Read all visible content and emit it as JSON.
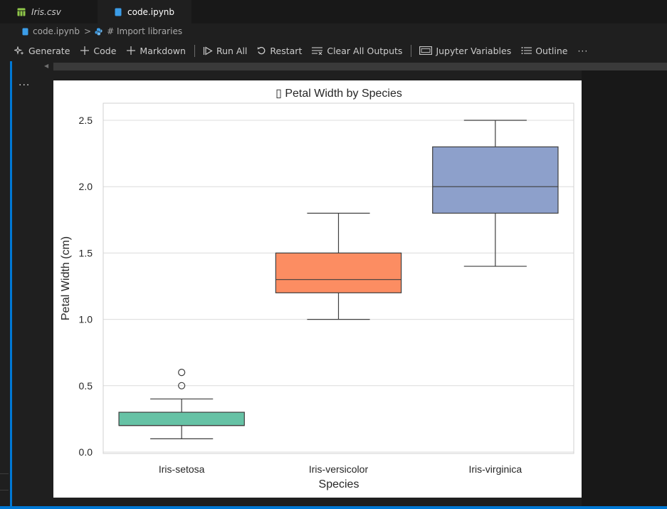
{
  "tabs": [
    {
      "label": "Iris.csv",
      "icon": "table-icon",
      "color": "#8fc74a"
    },
    {
      "label": "code.ipynb",
      "icon": "notebook-icon",
      "color": "#3b9de8"
    }
  ],
  "breadcrumb": {
    "file": "code.ipynb",
    "separator": ">",
    "cell": "# Import libraries"
  },
  "toolbar": {
    "generate": "Generate",
    "code": "Code",
    "markdown": "Markdown",
    "run_all": "Run All",
    "restart": "Restart",
    "clear_outputs": "Clear All Outputs",
    "variables": "Jupyter Variables",
    "outline": "Outline",
    "more": "···"
  },
  "cell": {
    "more": "···"
  },
  "chart_data": {
    "type": "box",
    "title": "Petal Width by Species",
    "title_glyph": "▯",
    "xlabel": "Species",
    "ylabel": "Petal Width (cm)",
    "ylim": [
      0.0,
      2.6
    ],
    "yticks": [
      "0.0",
      "0.5",
      "1.0",
      "1.5",
      "2.0",
      "2.5"
    ],
    "grid": true,
    "categories": [
      "Iris-setosa",
      "Iris-versicolor",
      "Iris-virginica"
    ],
    "boxes": [
      {
        "name": "Iris-setosa",
        "whisker_low": 0.1,
        "q1": 0.2,
        "median": 0.2,
        "q3": 0.3,
        "whisker_high": 0.4,
        "outliers": [
          0.5,
          0.6
        ],
        "color": "#66c2a5"
      },
      {
        "name": "Iris-versicolor",
        "whisker_low": 1.0,
        "q1": 1.2,
        "median": 1.3,
        "q3": 1.5,
        "whisker_high": 1.8,
        "outliers": [],
        "color": "#fc8d62"
      },
      {
        "name": "Iris-virginica",
        "whisker_low": 1.4,
        "q1": 1.8,
        "median": 2.0,
        "q3": 2.3,
        "whisker_high": 2.5,
        "outliers": [],
        "color": "#8da0cb"
      }
    ]
  }
}
